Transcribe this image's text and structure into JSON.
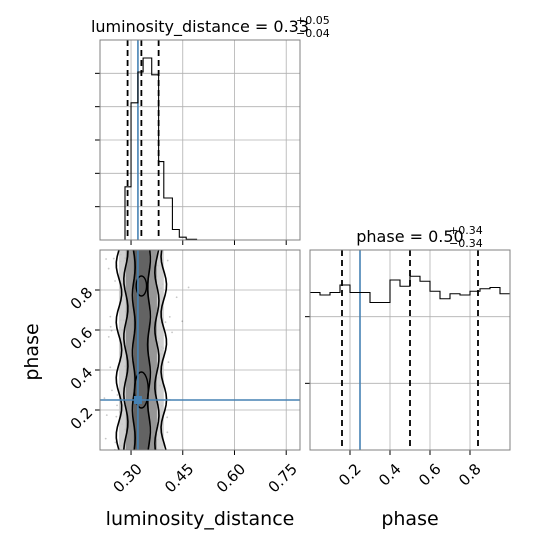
{
  "chart_data": {
    "type": "corner",
    "parameters": [
      "luminosity_distance",
      "phase"
    ],
    "titles": {
      "luminosity_distance": {
        "lhs": "luminosity_distance = 0.33",
        "plus": "+0.05",
        "minus": "−0.04"
      },
      "phase": {
        "lhs": "phase = 0.50",
        "plus": "+0.34",
        "minus": "−0.34"
      }
    },
    "xlabels": [
      "luminosity_distance",
      "phase"
    ],
    "ylabel": "phase",
    "truths": {
      "luminosity_distance": 0.32,
      "phase": 0.25
    },
    "colors": {
      "truth": "#4682b4",
      "hist": "#000000",
      "grid": "#b0b0b0",
      "frame": "#808080",
      "quantile": "#000000"
    },
    "luminosity_distance": {
      "range": [
        0.21,
        0.79
      ],
      "ticks": [
        0.3,
        0.45,
        0.6,
        0.75
      ],
      "tick_labels": [
        "0.30",
        "0.45",
        "0.60",
        "0.75"
      ],
      "quantiles": [
        0.29,
        0.33,
        0.38
      ],
      "hist_max": 1300,
      "hist_edges": [
        0.21,
        0.2375,
        0.265,
        0.2825,
        0.3,
        0.32,
        0.335,
        0.36,
        0.38,
        0.395,
        0.42,
        0.44,
        0.46,
        0.49,
        0.52,
        0.79
      ],
      "hist_counts": [
        0,
        0,
        0,
        380,
        980,
        1200,
        1300,
        1180,
        560,
        300,
        75,
        20,
        5,
        0,
        0
      ]
    },
    "phase": {
      "range": [
        0.0,
        1.0
      ],
      "ticks": [
        0.2,
        0.4,
        0.6,
        0.8
      ],
      "tick_labels": [
        "0.2",
        "0.4",
        "0.6",
        "0.8"
      ],
      "quantiles": [
        0.16,
        0.5,
        0.84
      ],
      "hist_max": 1.6,
      "hist_edges": [
        0.0,
        0.05,
        0.1,
        0.15,
        0.2,
        0.3,
        0.35,
        0.4,
        0.45,
        0.5,
        0.55,
        0.6,
        0.65,
        0.7,
        0.75,
        0.8,
        0.85,
        0.9,
        0.95,
        1.0
      ],
      "hist_counts": [
        1.26,
        1.24,
        1.26,
        1.32,
        1.26,
        1.18,
        1.18,
        1.36,
        1.31,
        1.39,
        1.35,
        1.27,
        1.21,
        1.25,
        1.24,
        1.27,
        1.29,
        1.3,
        1.25
      ]
    },
    "density_2d": {
      "contour_levels_x": [
        {
          "center": 0.33,
          "half_width": 0.065,
          "wiggle": 0.008
        },
        {
          "center": 0.33,
          "half_width": 0.045,
          "wiggle": 0.006
        },
        {
          "center": 0.33,
          "half_width": 0.022,
          "wiggle": 0.004
        }
      ],
      "inner_blobs": [
        {
          "x": 0.33,
          "y": 0.3,
          "rx": 0.02,
          "ry": 0.09
        },
        {
          "x": 0.33,
          "y": 0.82,
          "rx": 0.015,
          "ry": 0.05
        }
      ]
    }
  }
}
